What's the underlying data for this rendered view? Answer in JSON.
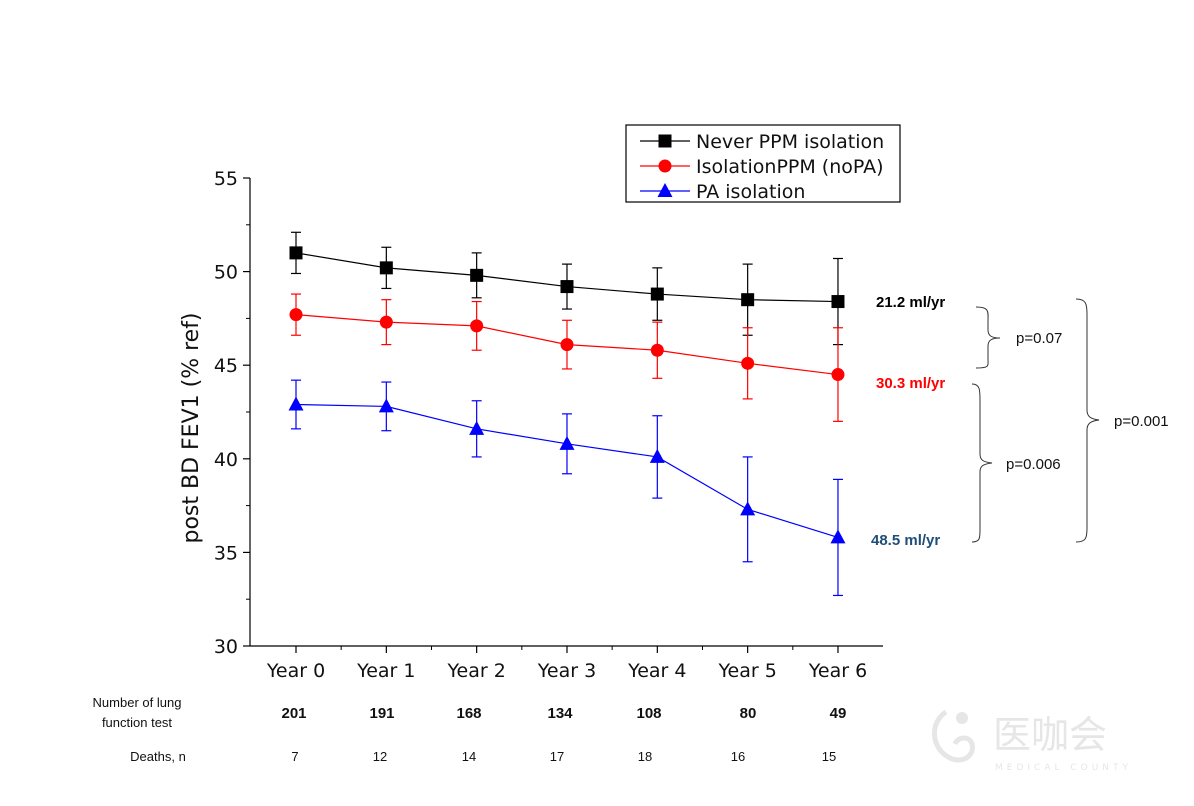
{
  "chart_data": {
    "type": "line",
    "ylabel": "post BD FEV1 (% ref)",
    "xlabel": "",
    "ylim": [
      30,
      55
    ],
    "yticks": [
      30,
      35,
      40,
      45,
      50,
      55
    ],
    "grid": false,
    "legend_position": "top-right",
    "categories": [
      "Year 0",
      "Year 1",
      "Year 2",
      "Year 3",
      "Year 4",
      "Year 5",
      "Year 6"
    ],
    "series": [
      {
        "name": "Never PPM isolation",
        "color": "#000000",
        "marker": "square",
        "values": [
          51.0,
          50.2,
          49.8,
          49.2,
          48.8,
          48.5,
          48.4
        ],
        "err_low": [
          49.9,
          49.1,
          48.6,
          48.0,
          47.4,
          46.6,
          46.1
        ],
        "err_high": [
          52.1,
          51.3,
          51.0,
          50.4,
          50.2,
          50.4,
          50.7
        ],
        "rate": "21.2 ml/yr",
        "rate_color": "#000000"
      },
      {
        "name": "IsolationPPM (noPA)",
        "color": "#ff0000",
        "marker": "circle",
        "values": [
          47.7,
          47.3,
          47.1,
          46.1,
          45.8,
          45.1,
          44.5
        ],
        "err_low": [
          46.6,
          46.1,
          45.8,
          44.8,
          44.3,
          43.2,
          42.0
        ],
        "err_high": [
          48.8,
          48.5,
          48.4,
          47.4,
          47.3,
          47.0,
          47.0
        ],
        "rate": "30.3 ml/yr",
        "rate_color": "#ff0000"
      },
      {
        "name": "PA isolation",
        "color": "#0000ff",
        "marker": "triangle",
        "values": [
          42.9,
          42.8,
          41.6,
          40.8,
          40.1,
          37.3,
          35.8
        ],
        "err_low": [
          41.6,
          41.5,
          40.1,
          39.2,
          37.9,
          34.5,
          32.7
        ],
        "err_high": [
          44.2,
          44.1,
          43.1,
          42.4,
          42.3,
          40.1,
          38.9
        ],
        "rate": "48.5 ml/yr",
        "rate_color": "#1f4e79"
      }
    ],
    "comparisons": [
      {
        "label": "p=0.07"
      },
      {
        "label": "p=0.006"
      },
      {
        "label": "p=0.001"
      }
    ]
  },
  "table": {
    "rows": [
      {
        "label_lines": [
          "Number of lung",
          "function test"
        ],
        "values": [
          "201",
          "191",
          "168",
          "134",
          "108",
          "80",
          "49"
        ]
      },
      {
        "label_lines": [
          "Deaths, n"
        ],
        "values": [
          "7",
          "12",
          "14",
          "17",
          "18",
          "16",
          "15"
        ]
      }
    ]
  },
  "watermark": {
    "text": "医咖会",
    "subtext": "MEDICAL COUNTY",
    "color": "#e6e6e6"
  }
}
